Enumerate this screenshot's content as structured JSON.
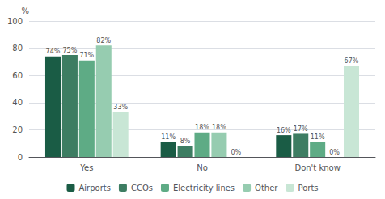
{
  "chart_data": {
    "type": "bar",
    "ylabel": "%",
    "categories": [
      "Yes",
      "No",
      "Don't know"
    ],
    "series": [
      {
        "name": "Airports",
        "color": "#1a5c45",
        "values": [
          74,
          11,
          16
        ],
        "value_labels": [
          "74%",
          "11%",
          "16%"
        ]
      },
      {
        "name": "CCOs",
        "color": "#3d7d62",
        "values": [
          75,
          8,
          17
        ],
        "value_labels": [
          "75%",
          "8%",
          "17%"
        ]
      },
      {
        "name": "Electricity lines",
        "color": "#5eab85",
        "values": [
          71,
          18,
          11
        ],
        "value_labels": [
          "71%",
          "18%",
          "11%"
        ]
      },
      {
        "name": "Other",
        "color": "#96ccb0",
        "values": [
          82,
          18,
          0
        ],
        "value_labels": [
          "82%",
          "18%",
          "0%"
        ]
      },
      {
        "name": "Ports",
        "color": "#c8e6d5",
        "values": [
          33,
          0,
          67
        ],
        "value_labels": [
          "33%",
          "0%",
          "67%"
        ]
      }
    ],
    "ylim": [
      0,
      100
    ],
    "yticks": [
      0,
      20,
      40,
      60,
      80,
      100
    ],
    "grid": true,
    "legend": "bottom",
    "data_labels": true
  }
}
